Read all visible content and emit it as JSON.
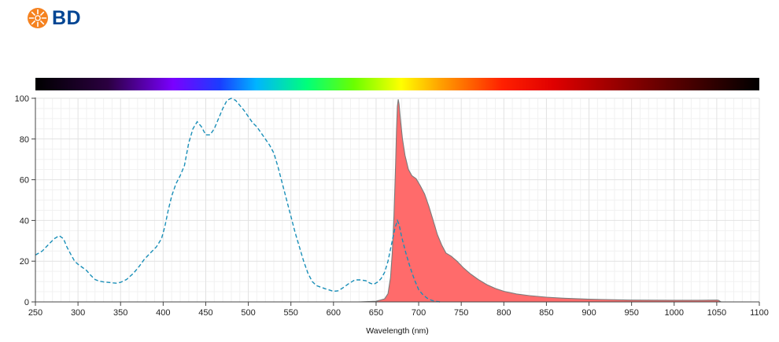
{
  "brand": {
    "logo_text": "BD",
    "logo_color": "#004593",
    "logo_burst_color": "#f58220",
    "logo_icon": "sunburst-icon"
  },
  "chart_data": {
    "type": "area",
    "title": "",
    "xlabel": "Wavelength (nm)",
    "ylabel": "",
    "xlim": [
      250,
      1100
    ],
    "ylim": [
      0,
      100
    ],
    "x_ticks": [
      250,
      300,
      350,
      400,
      450,
      500,
      550,
      600,
      650,
      700,
      750,
      800,
      850,
      900,
      950,
      1000,
      1050,
      1100
    ],
    "y_ticks": [
      0,
      20,
      40,
      60,
      80,
      100
    ],
    "grid": true,
    "legend": "none",
    "spectrum_bar": true,
    "series": [
      {
        "kind": "excitation",
        "style": "dashed line",
        "color": "#1a8fb8",
        "points": [
          [
            250,
            23
          ],
          [
            258,
            25
          ],
          [
            265,
            28
          ],
          [
            272,
            31
          ],
          [
            278,
            32.5
          ],
          [
            283,
            31
          ],
          [
            287,
            27
          ],
          [
            292,
            23
          ],
          [
            296,
            20
          ],
          [
            300,
            18.5
          ],
          [
            305,
            17
          ],
          [
            310,
            15.5
          ],
          [
            315,
            13
          ],
          [
            320,
            11
          ],
          [
            325,
            10.2
          ],
          [
            330,
            9.8
          ],
          [
            340,
            9.4
          ],
          [
            345,
            9.2
          ],
          [
            350,
            9.6
          ],
          [
            357,
            11
          ],
          [
            365,
            14
          ],
          [
            372,
            17.5
          ],
          [
            378,
            21
          ],
          [
            385,
            24
          ],
          [
            392,
            27
          ],
          [
            398,
            31
          ],
          [
            402,
            37
          ],
          [
            406,
            45
          ],
          [
            410,
            52
          ],
          [
            415,
            58
          ],
          [
            420,
            62
          ],
          [
            425,
            67
          ],
          [
            430,
            78
          ],
          [
            435,
            85
          ],
          [
            440,
            88.5
          ],
          [
            445,
            86
          ],
          [
            450,
            82
          ],
          [
            455,
            82
          ],
          [
            460,
            85
          ],
          [
            465,
            90
          ],
          [
            470,
            95
          ],
          [
            475,
            99
          ],
          [
            480,
            100
          ],
          [
            485,
            99
          ],
          [
            490,
            96.5
          ],
          [
            495,
            94
          ],
          [
            500,
            91
          ],
          [
            505,
            88
          ],
          [
            510,
            86
          ],
          [
            515,
            83
          ],
          [
            520,
            80
          ],
          [
            525,
            77
          ],
          [
            530,
            73
          ],
          [
            535,
            66
          ],
          [
            540,
            58
          ],
          [
            545,
            50
          ],
          [
            550,
            42
          ],
          [
            555,
            34
          ],
          [
            560,
            27
          ],
          [
            565,
            20
          ],
          [
            570,
            14
          ],
          [
            575,
            10
          ],
          [
            580,
            8
          ],
          [
            590,
            6.5
          ],
          [
            600,
            5.2
          ],
          [
            605,
            5.4
          ],
          [
            610,
            6.6
          ],
          [
            618,
            9
          ],
          [
            625,
            10.8
          ],
          [
            632,
            10.8
          ],
          [
            638,
            10.4
          ],
          [
            643,
            9.2
          ],
          [
            647,
            8.6
          ],
          [
            652,
            9.8
          ],
          [
            656,
            11.5
          ],
          [
            660,
            14.5
          ],
          [
            664,
            20
          ],
          [
            668,
            28
          ],
          [
            672,
            36
          ],
          [
            675,
            40
          ],
          [
            677,
            38
          ],
          [
            680,
            32
          ],
          [
            685,
            24
          ],
          [
            690,
            17
          ],
          [
            695,
            11
          ],
          [
            700,
            6
          ],
          [
            705,
            3.5
          ],
          [
            710,
            1.8
          ],
          [
            715,
            0.8
          ],
          [
            720,
            0.3
          ],
          [
            725,
            0
          ]
        ]
      },
      {
        "kind": "emission",
        "style": "filled area",
        "color": "#ff6b6b",
        "stroke": "#7a7a7a",
        "points": [
          [
            630,
            0
          ],
          [
            650,
            0.3
          ],
          [
            660,
            1.5
          ],
          [
            664,
            4
          ],
          [
            667,
            12
          ],
          [
            669,
            24
          ],
          [
            671,
            42
          ],
          [
            673,
            68
          ],
          [
            674,
            84
          ],
          [
            675,
            96
          ],
          [
            676,
            99.5
          ],
          [
            677,
            97
          ],
          [
            679,
            88
          ],
          [
            681,
            80
          ],
          [
            684,
            72
          ],
          [
            688,
            65
          ],
          [
            692,
            62
          ],
          [
            697,
            60.5
          ],
          [
            702,
            57
          ],
          [
            707,
            53
          ],
          [
            712,
            47
          ],
          [
            717,
            40
          ],
          [
            722,
            33
          ],
          [
            727,
            28
          ],
          [
            732,
            24
          ],
          [
            738,
            22.5
          ],
          [
            745,
            20
          ],
          [
            752,
            17
          ],
          [
            760,
            14
          ],
          [
            770,
            11
          ],
          [
            780,
            8.5
          ],
          [
            790,
            6.6
          ],
          [
            800,
            5.2
          ],
          [
            815,
            3.9
          ],
          [
            830,
            3.1
          ],
          [
            850,
            2.3
          ],
          [
            870,
            1.8
          ],
          [
            900,
            1.3
          ],
          [
            950,
            0.9
          ],
          [
            1000,
            0.8
          ],
          [
            1030,
            0.8
          ],
          [
            1050,
            0.9
          ],
          [
            1052,
            0.8
          ],
          [
            1055,
            0
          ]
        ]
      }
    ]
  }
}
